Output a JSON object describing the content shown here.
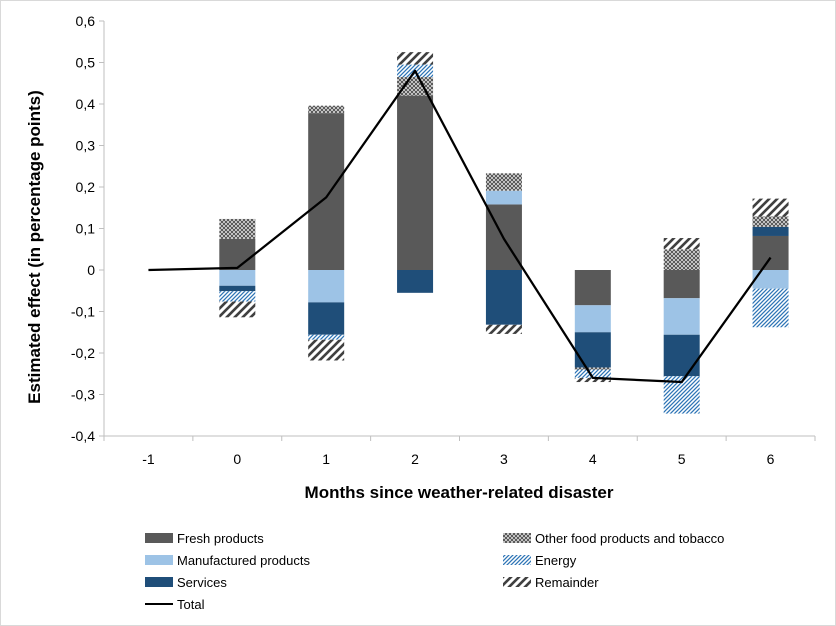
{
  "chart_data": {
    "type": "bar",
    "stacked": true,
    "xlabel": "Months since weather-related disaster",
    "ylabel": "Estimated effect (in percentage points)",
    "categories": [
      "-1",
      "0",
      "1",
      "2",
      "3",
      "4",
      "5",
      "6"
    ],
    "ylim": [
      -0.4,
      0.6
    ],
    "yticks": [
      "-0,4",
      "-0,3",
      "-0,2",
      "-0,1",
      "0",
      "0,1",
      "0,2",
      "0,3",
      "0,4",
      "0,5",
      "0,6"
    ],
    "grid": false,
    "legend_position": "bottom",
    "series": [
      {
        "name": "Fresh products",
        "fill": "solid",
        "color": "#595959",
        "values": [
          0,
          0.075,
          0.378,
          0.42,
          0.158,
          -0.085,
          -0.068,
          0.082
        ]
      },
      {
        "name": "Manufactured products",
        "fill": "solid",
        "color": "#9dc3e6",
        "values": [
          0,
          -0.038,
          -0.078,
          0,
          0.033,
          -0.065,
          -0.088,
          -0.045
        ]
      },
      {
        "name": "Services",
        "fill": "solid",
        "color": "#1f4e79",
        "values": [
          0,
          -0.013,
          -0.078,
          -0.055,
          -0.132,
          -0.085,
          -0.1,
          0.022
        ]
      },
      {
        "name": "Other food products and tobacco",
        "fill": "crosshatch",
        "color": "#595959",
        "values": [
          0,
          0.048,
          0.018,
          0.045,
          0.042,
          -0.005,
          0.05,
          0.025
        ]
      },
      {
        "name": "Energy",
        "fill": "hatch",
        "color": "#2e75b6",
        "values": [
          0,
          -0.025,
          -0.012,
          0.03,
          0,
          -0.02,
          -0.09,
          -0.093
        ]
      },
      {
        "name": "Remainder",
        "fill": "bold-hatch",
        "color": "#404040",
        "values": [
          0,
          -0.038,
          -0.05,
          0.03,
          -0.022,
          -0.01,
          0.027,
          0.043
        ]
      }
    ],
    "total": {
      "name": "Total",
      "color": "#000000",
      "values": [
        0,
        0.005,
        0.175,
        0.48,
        0.075,
        -0.26,
        -0.27,
        0.03
      ]
    }
  }
}
